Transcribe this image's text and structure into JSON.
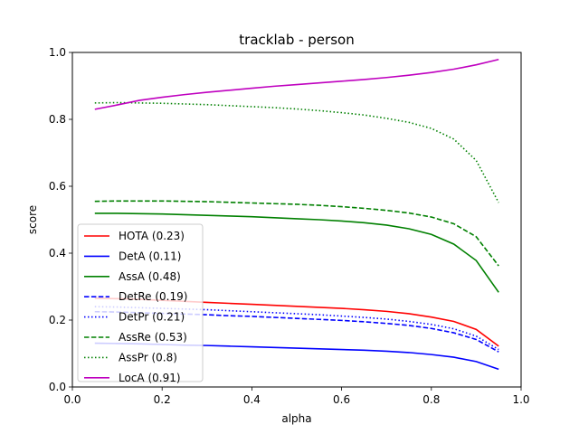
{
  "chart_data": {
    "type": "line",
    "title": "tracklab - person",
    "xlabel": "alpha",
    "ylabel": "score",
    "xlim": [
      0.0,
      1.0
    ],
    "ylim": [
      0.0,
      1.0
    ],
    "xticks": [
      "0.0",
      "0.2",
      "0.4",
      "0.6",
      "0.8",
      "1.0"
    ],
    "yticks": [
      "0.0",
      "0.2",
      "0.4",
      "0.6",
      "0.8",
      "1.0"
    ],
    "grid": false,
    "legend_position": "lower-left",
    "x": [
      0.05,
      0.1,
      0.15,
      0.2,
      0.25,
      0.3,
      0.35,
      0.4,
      0.45,
      0.5,
      0.55,
      0.6,
      0.65,
      0.7,
      0.75,
      0.8,
      0.85,
      0.9,
      0.95
    ],
    "series": [
      {
        "name": "HOTA (0.23)",
        "color": "#ff0000",
        "dash": "solid",
        "values": [
          0.265,
          0.264,
          0.262,
          0.259,
          0.256,
          0.253,
          0.25,
          0.247,
          0.244,
          0.241,
          0.238,
          0.235,
          0.231,
          0.226,
          0.219,
          0.209,
          0.196,
          0.172,
          0.122
        ]
      },
      {
        "name": "DetA (0.11)",
        "color": "#0000ff",
        "dash": "solid",
        "values": [
          0.131,
          0.13,
          0.129,
          0.127,
          0.125,
          0.124,
          0.122,
          0.12,
          0.118,
          0.116,
          0.114,
          0.112,
          0.11,
          0.107,
          0.103,
          0.097,
          0.089,
          0.076,
          0.053
        ]
      },
      {
        "name": "AssA (0.48)",
        "color": "#008000",
        "dash": "solid",
        "values": [
          0.519,
          0.519,
          0.518,
          0.517,
          0.515,
          0.513,
          0.511,
          0.509,
          0.506,
          0.503,
          0.5,
          0.496,
          0.491,
          0.484,
          0.473,
          0.456,
          0.427,
          0.378,
          0.283
        ]
      },
      {
        "name": "DetRe (0.19)",
        "color": "#0000ff",
        "dash": "dashed",
        "values": [
          0.225,
          0.224,
          0.222,
          0.22,
          0.218,
          0.216,
          0.213,
          0.211,
          0.208,
          0.205,
          0.202,
          0.199,
          0.195,
          0.19,
          0.184,
          0.175,
          0.162,
          0.142,
          0.105
        ]
      },
      {
        "name": "DetPr (0.21)",
        "color": "#0000ff",
        "dash": "dotted",
        "values": [
          0.24,
          0.239,
          0.237,
          0.235,
          0.233,
          0.231,
          0.228,
          0.225,
          0.222,
          0.219,
          0.216,
          0.212,
          0.208,
          0.203,
          0.196,
          0.187,
          0.174,
          0.152,
          0.112
        ]
      },
      {
        "name": "AssRe (0.53)",
        "color": "#008000",
        "dash": "dashed",
        "values": [
          0.555,
          0.556,
          0.556,
          0.556,
          0.555,
          0.554,
          0.552,
          0.55,
          0.548,
          0.546,
          0.543,
          0.539,
          0.534,
          0.528,
          0.52,
          0.508,
          0.488,
          0.449,
          0.362
        ]
      },
      {
        "name": "AssPr (0.8)",
        "color": "#008000",
        "dash": "dotted",
        "values": [
          0.849,
          0.85,
          0.849,
          0.848,
          0.846,
          0.844,
          0.841,
          0.838,
          0.835,
          0.831,
          0.826,
          0.82,
          0.813,
          0.803,
          0.791,
          0.773,
          0.741,
          0.677,
          0.551
        ]
      },
      {
        "name": "LocA (0.91)",
        "color": "#bf00bf",
        "dash": "solid",
        "values": [
          0.83,
          0.843,
          0.857,
          0.866,
          0.874,
          0.881,
          0.887,
          0.893,
          0.899,
          0.904,
          0.909,
          0.914,
          0.919,
          0.925,
          0.932,
          0.94,
          0.95,
          0.963,
          0.979
        ]
      }
    ]
  }
}
